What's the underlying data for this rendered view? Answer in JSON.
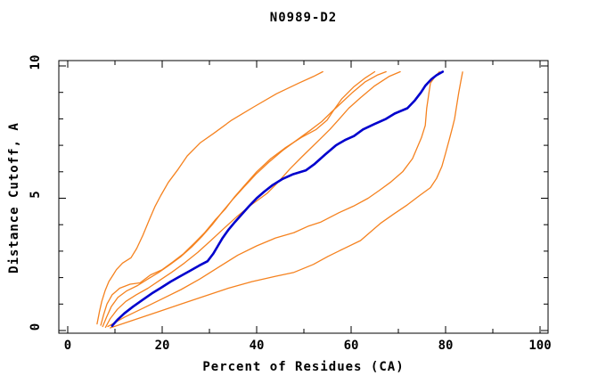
{
  "title": "N0989-D2",
  "chart_data": {
    "type": "line",
    "title": "N0989-D2",
    "xlabel": "Percent of Residues (CA)",
    "ylabel": "Distance Cutoff, A",
    "xlim": [
      0,
      100
    ],
    "ylim": [
      0,
      10
    ],
    "grid": false,
    "legend": "none",
    "frame_color": "#000000",
    "background": "#ffffff",
    "x_major_ticks": [
      0,
      20,
      40,
      60,
      80,
      100
    ],
    "x_minor_ticks": [
      10,
      30,
      50,
      70,
      90
    ],
    "y_major_ticks": [
      0,
      5,
      10
    ],
    "y_minor_ticks": [
      1,
      2,
      3,
      4,
      6,
      7,
      8,
      9
    ],
    "colors": {
      "orange_models": "#f5821f",
      "blue_highlight": "#0000cd"
    },
    "series": [
      {
        "name": "orange-1",
        "color": "#f5821f",
        "width": 1.3,
        "points": [
          [
            6.2,
            0.25
          ],
          [
            6.7,
            0.7
          ],
          [
            7.2,
            1.1
          ],
          [
            7.9,
            1.5
          ],
          [
            8.7,
            1.85
          ],
          [
            9.6,
            2.1
          ],
          [
            10.3,
            2.3
          ],
          [
            11.6,
            2.55
          ],
          [
            13.4,
            2.75
          ],
          [
            14.6,
            3.1
          ],
          [
            15.9,
            3.6
          ],
          [
            17.3,
            4.2
          ],
          [
            18.5,
            4.7
          ],
          [
            19.7,
            5.1
          ],
          [
            21.3,
            5.6
          ],
          [
            23.4,
            6.1
          ],
          [
            25.3,
            6.6
          ],
          [
            28.1,
            7.1
          ],
          [
            30.9,
            7.45
          ],
          [
            34.7,
            7.95
          ],
          [
            39.4,
            8.45
          ],
          [
            44.2,
            8.95
          ],
          [
            48.9,
            9.35
          ],
          [
            52.0,
            9.6
          ],
          [
            54.0,
            9.78
          ]
        ]
      },
      {
        "name": "orange-2",
        "color": "#f5821f",
        "width": 1.3,
        "points": [
          [
            7.0,
            0.2
          ],
          [
            7.6,
            0.6
          ],
          [
            8.3,
            1.0
          ],
          [
            9.4,
            1.35
          ],
          [
            11.0,
            1.6
          ],
          [
            13.2,
            1.75
          ],
          [
            15.3,
            1.8
          ],
          [
            17.5,
            2.1
          ],
          [
            20.0,
            2.3
          ],
          [
            22.3,
            2.6
          ],
          [
            24.5,
            2.9
          ],
          [
            26.8,
            3.3
          ],
          [
            29.0,
            3.7
          ],
          [
            31.3,
            4.2
          ],
          [
            33.4,
            4.6
          ],
          [
            35.3,
            5.05
          ],
          [
            37.5,
            5.5
          ],
          [
            40.0,
            6.0
          ],
          [
            43.0,
            6.5
          ],
          [
            46.0,
            6.9
          ],
          [
            49.5,
            7.3
          ],
          [
            52.6,
            7.6
          ],
          [
            54.9,
            7.95
          ],
          [
            56.4,
            8.35
          ],
          [
            58.0,
            8.75
          ],
          [
            60.5,
            9.2
          ],
          [
            63.0,
            9.55
          ],
          [
            65.0,
            9.78
          ]
        ]
      },
      {
        "name": "orange-3",
        "color": "#f5821f",
        "width": 1.3,
        "points": [
          [
            7.4,
            0.15
          ],
          [
            8.2,
            0.5
          ],
          [
            9.2,
            0.9
          ],
          [
            10.6,
            1.25
          ],
          [
            12.5,
            1.5
          ],
          [
            14.8,
            1.7
          ],
          [
            17.0,
            1.95
          ],
          [
            19.3,
            2.2
          ],
          [
            21.7,
            2.5
          ],
          [
            24.0,
            2.8
          ],
          [
            26.2,
            3.15
          ],
          [
            28.4,
            3.55
          ],
          [
            30.6,
            4.0
          ],
          [
            32.8,
            4.5
          ],
          [
            34.9,
            4.95
          ],
          [
            37.2,
            5.4
          ],
          [
            39.8,
            5.9
          ],
          [
            42.5,
            6.35
          ],
          [
            45.5,
            6.8
          ],
          [
            48.5,
            7.2
          ],
          [
            51.2,
            7.55
          ],
          [
            53.8,
            7.9
          ],
          [
            55.8,
            8.25
          ],
          [
            57.9,
            8.6
          ],
          [
            60.3,
            9.0
          ],
          [
            63.0,
            9.4
          ],
          [
            65.5,
            9.65
          ],
          [
            67.4,
            9.78
          ]
        ]
      },
      {
        "name": "orange-4",
        "color": "#f5821f",
        "width": 1.3,
        "points": [
          [
            8.0,
            0.12
          ],
          [
            9.0,
            0.45
          ],
          [
            10.5,
            0.8
          ],
          [
            12.3,
            1.1
          ],
          [
            14.5,
            1.35
          ],
          [
            17.0,
            1.6
          ],
          [
            19.5,
            1.9
          ],
          [
            22.0,
            2.2
          ],
          [
            24.7,
            2.55
          ],
          [
            27.5,
            2.95
          ],
          [
            30.3,
            3.4
          ],
          [
            33.0,
            3.85
          ],
          [
            35.8,
            4.3
          ],
          [
            38.5,
            4.7
          ],
          [
            40.8,
            5.0
          ],
          [
            42.3,
            5.2
          ],
          [
            44.5,
            5.6
          ],
          [
            47.0,
            6.1
          ],
          [
            49.5,
            6.55
          ],
          [
            51.5,
            6.9
          ],
          [
            53.5,
            7.25
          ],
          [
            55.5,
            7.6
          ],
          [
            57.5,
            8.0
          ],
          [
            59.5,
            8.4
          ],
          [
            62.0,
            8.8
          ],
          [
            65.0,
            9.25
          ],
          [
            68.0,
            9.6
          ],
          [
            70.4,
            9.78
          ]
        ]
      },
      {
        "name": "orange-5",
        "color": "#f5821f",
        "width": 1.3,
        "points": [
          [
            8.5,
            0.15
          ],
          [
            12.0,
            0.5
          ],
          [
            16.0,
            0.85
          ],
          [
            20.0,
            1.2
          ],
          [
            24.0,
            1.55
          ],
          [
            28.0,
            1.95
          ],
          [
            32.0,
            2.4
          ],
          [
            36.0,
            2.85
          ],
          [
            40.0,
            3.2
          ],
          [
            44.0,
            3.5
          ],
          [
            47.9,
            3.7
          ],
          [
            51.0,
            3.95
          ],
          [
            53.6,
            4.1
          ],
          [
            57.4,
            4.45
          ],
          [
            60.5,
            4.7
          ],
          [
            63.6,
            5.0
          ],
          [
            66.0,
            5.3
          ],
          [
            68.3,
            5.6
          ],
          [
            70.9,
            6.0
          ],
          [
            73.0,
            6.5
          ],
          [
            74.9,
            7.3
          ],
          [
            75.7,
            7.75
          ],
          [
            76.0,
            8.4
          ],
          [
            76.5,
            9.0
          ],
          [
            76.8,
            9.35
          ],
          [
            77.8,
            9.6
          ],
          [
            78.7,
            9.78
          ]
        ]
      },
      {
        "name": "orange-6",
        "color": "#f5821f",
        "width": 1.3,
        "points": [
          [
            9.0,
            0.1
          ],
          [
            14.0,
            0.4
          ],
          [
            19.0,
            0.7
          ],
          [
            24.0,
            1.0
          ],
          [
            29.0,
            1.3
          ],
          [
            34.0,
            1.6
          ],
          [
            39.0,
            1.85
          ],
          [
            44.0,
            2.05
          ],
          [
            47.9,
            2.2
          ],
          [
            52.0,
            2.5
          ],
          [
            55.1,
            2.8
          ],
          [
            58.5,
            3.1
          ],
          [
            62.0,
            3.4
          ],
          [
            66.2,
            4.05
          ],
          [
            69.0,
            4.4
          ],
          [
            71.9,
            4.75
          ],
          [
            74.5,
            5.1
          ],
          [
            76.8,
            5.4
          ],
          [
            78.1,
            5.75
          ],
          [
            79.2,
            6.2
          ],
          [
            80.0,
            6.7
          ],
          [
            80.9,
            7.3
          ],
          [
            81.5,
            7.7
          ],
          [
            81.9,
            8.0
          ],
          [
            82.3,
            8.45
          ],
          [
            82.8,
            9.0
          ],
          [
            83.2,
            9.4
          ],
          [
            83.6,
            9.77
          ]
        ]
      },
      {
        "name": "blue",
        "color": "#0000cd",
        "width": 2.6,
        "points": [
          [
            9.4,
            0.18
          ],
          [
            10.5,
            0.4
          ],
          [
            12.0,
            0.65
          ],
          [
            13.8,
            0.9
          ],
          [
            15.8,
            1.15
          ],
          [
            17.8,
            1.4
          ],
          [
            19.8,
            1.62
          ],
          [
            21.8,
            1.85
          ],
          [
            23.8,
            2.05
          ],
          [
            25.8,
            2.25
          ],
          [
            27.8,
            2.45
          ],
          [
            29.6,
            2.62
          ],
          [
            30.8,
            2.9
          ],
          [
            31.8,
            3.2
          ],
          [
            32.8,
            3.5
          ],
          [
            34.0,
            3.8
          ],
          [
            35.4,
            4.1
          ],
          [
            36.9,
            4.4
          ],
          [
            38.4,
            4.7
          ],
          [
            40.0,
            5.0
          ],
          [
            41.6,
            5.25
          ],
          [
            43.4,
            5.5
          ],
          [
            45.4,
            5.72
          ],
          [
            47.6,
            5.9
          ],
          [
            50.4,
            6.05
          ],
          [
            52.3,
            6.3
          ],
          [
            54.5,
            6.65
          ],
          [
            56.8,
            7.0
          ],
          [
            58.7,
            7.2
          ],
          [
            60.6,
            7.35
          ],
          [
            62.5,
            7.6
          ],
          [
            64.9,
            7.8
          ],
          [
            67.4,
            8.0
          ],
          [
            69.2,
            8.2
          ],
          [
            71.9,
            8.4
          ],
          [
            73.5,
            8.7
          ],
          [
            74.8,
            9.0
          ],
          [
            75.7,
            9.25
          ],
          [
            77.0,
            9.5
          ],
          [
            78.1,
            9.65
          ],
          [
            79.4,
            9.78
          ]
        ]
      }
    ],
    "x_tick_labels": [
      "0",
      "20",
      "40",
      "60",
      "80",
      "100"
    ],
    "y_tick_labels": [
      "0",
      "5",
      "10"
    ]
  }
}
